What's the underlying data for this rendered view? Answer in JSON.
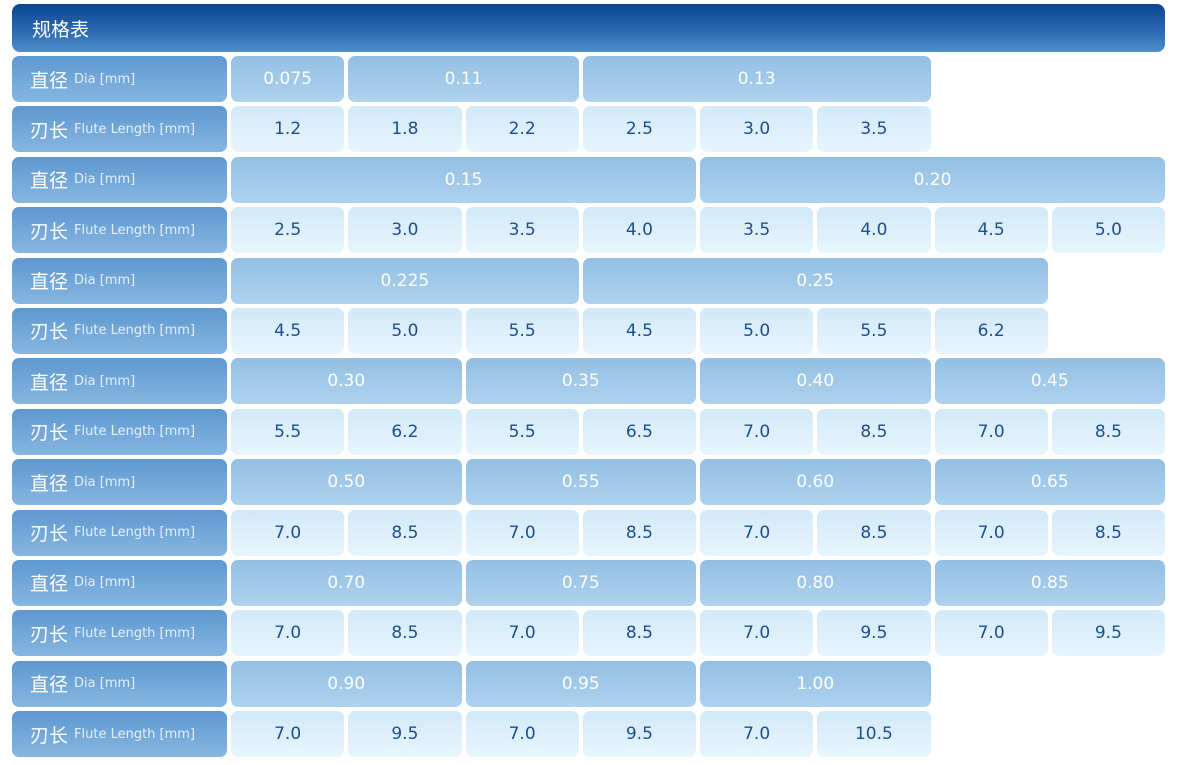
{
  "title": "规格表",
  "labels": {
    "dia_cn": "直径",
    "dia_en": "Dia [mm]",
    "flute_cn": "刃长",
    "flute_en": "Flute Length [mm]"
  },
  "blocks": [
    {
      "diameters": [
        {
          "value": "0.075",
          "span": 1
        },
        {
          "value": "0.11",
          "span": 2
        },
        {
          "value": "0.13",
          "span": 3
        }
      ],
      "flute_lengths": [
        "1.2",
        "1.8",
        "2.2",
        "2.5",
        "3.0",
        "3.5"
      ]
    },
    {
      "diameters": [
        {
          "value": "0.15",
          "span": 4
        },
        {
          "value": "0.20",
          "span": 4
        }
      ],
      "flute_lengths": [
        "2.5",
        "3.0",
        "3.5",
        "4.0",
        "3.5",
        "4.0",
        "4.5",
        "5.0"
      ]
    },
    {
      "diameters": [
        {
          "value": "0.225",
          "span": 3
        },
        {
          "value": "0.25",
          "span": 4
        }
      ],
      "flute_lengths": [
        "4.5",
        "5.0",
        "5.5",
        "4.5",
        "5.0",
        "5.5",
        "6.2"
      ]
    },
    {
      "diameters": [
        {
          "value": "0.30",
          "span": 2
        },
        {
          "value": "0.35",
          "span": 2
        },
        {
          "value": "0.40",
          "span": 2
        },
        {
          "value": "0.45",
          "span": 2
        }
      ],
      "flute_lengths": [
        "5.5",
        "6.2",
        "5.5",
        "6.5",
        "7.0",
        "8.5",
        "7.0",
        "8.5"
      ]
    },
    {
      "diameters": [
        {
          "value": "0.50",
          "span": 2
        },
        {
          "value": "0.55",
          "span": 2
        },
        {
          "value": "0.60",
          "span": 2
        },
        {
          "value": "0.65",
          "span": 2
        }
      ],
      "flute_lengths": [
        "7.0",
        "8.5",
        "7.0",
        "8.5",
        "7.0",
        "8.5",
        "7.0",
        "8.5"
      ]
    },
    {
      "diameters": [
        {
          "value": "0.70",
          "span": 2
        },
        {
          "value": "0.75",
          "span": 2
        },
        {
          "value": "0.80",
          "span": 2
        },
        {
          "value": "0.85",
          "span": 2
        }
      ],
      "flute_lengths": [
        "7.0",
        "8.5",
        "7.0",
        "8.5",
        "7.0",
        "9.5",
        "7.0",
        "9.5"
      ]
    },
    {
      "diameters": [
        {
          "value": "0.90",
          "span": 2
        },
        {
          "value": "0.95",
          "span": 2
        },
        {
          "value": "1.00",
          "span": 2
        }
      ],
      "flute_lengths": [
        "7.0",
        "9.5",
        "7.0",
        "9.5",
        "7.0",
        "10.5"
      ]
    }
  ]
}
